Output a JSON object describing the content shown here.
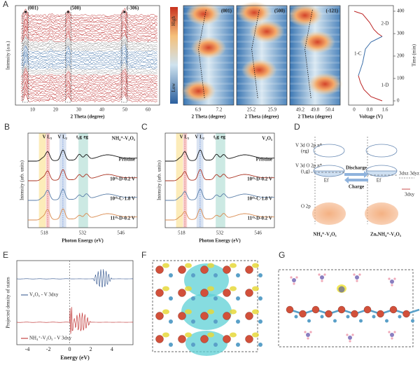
{
  "panel_a": {
    "label": "A",
    "peaks": [
      "(001)",
      "(500)",
      "(-306)"
    ],
    "y_label": "Intensity (a.u.)",
    "x_label": "2 Theta (degree)",
    "x_ticks": [
      "10",
      "20",
      "30",
      "40",
      "50",
      "60"
    ]
  },
  "heatmaps": {
    "colorbar": [
      "High",
      "Low"
    ],
    "panels": [
      {
        "title": "(001)",
        "ticks": [
          "6.9",
          "7.2"
        ],
        "x_label": "2 Theta (degree)"
      },
      {
        "title": "(500)",
        "ticks": [
          "25.2",
          "25.9"
        ],
        "x_label": "2 Theta (degree)"
      },
      {
        "title": "(-121)",
        "ticks": [
          "49.2",
          "49.8",
          "50.4"
        ],
        "x_label": "2 Theta (degree)"
      }
    ]
  },
  "voltage": {
    "stages": [
      "2-D",
      "1-C",
      "1-D"
    ],
    "x_ticks": [
      "0",
      "0.8",
      "1.6"
    ],
    "x_label": "Voltage (V)",
    "y_ticks": [
      "0",
      "100",
      "200",
      "300",
      "400"
    ],
    "y_label": "Time (min)"
  },
  "panel_b": {
    "label": "B",
    "edges": [
      "V L₃",
      "V L₂",
      "t₂g",
      "eg"
    ],
    "material": "NH₄⁺-V₂O₅",
    "curves": [
      "Pristine",
      "10ᵗʰ-D-0.2 V",
      "10ᵗʰ-C-1.8 V",
      "11ᵗʰ-D-0.2 V"
    ],
    "y_label": "Intensity (arb. units)",
    "x_label": "Photon Energy (eV)",
    "x_ticks": [
      "518",
      "532",
      "546"
    ]
  },
  "panel_c": {
    "label": "C",
    "edges": [
      "V L₃",
      "V L₂",
      "t₂g",
      "eg"
    ],
    "material": "V₂O₅",
    "curves": [
      "Pristine",
      "10ᵗʰ-D-0.2 V",
      "10ᵗʰ-C-1.8 V",
      "11ᵗʰ-D-0.2 V"
    ],
    "y_label": "Intensity (arb. units)",
    "x_label": "Photon Energy (eV)",
    "x_ticks": [
      "518",
      "532",
      "546"
    ]
  },
  "panel_d": {
    "label": "D",
    "upper_band": "V 3d O 2p π*",
    "upper_sym": "(eg)",
    "lower_band": "V 3d O 2p π*",
    "lower_sym": "(t₂g)",
    "fermi": [
      "Ef",
      "Ef"
    ],
    "arrows": [
      "Discharge",
      "Charge"
    ],
    "o_band": "O 2p",
    "split_upper": "3dxz  3dyz",
    "split_lower": "3dxy",
    "materials": [
      "NH₄⁺-V₂O₅",
      "ZnₓNH₄⁺-V₂O₅"
    ]
  },
  "panel_e": {
    "label": "E",
    "legend": [
      "V₂O₅ - V 3dxy",
      "NH₄⁺-V₂O₅ - V 3dxy"
    ],
    "y_label": "Projected density of states",
    "x_label": "Energy (eV)",
    "x_ticks": [
      "-4",
      "-2",
      "0",
      "2",
      "4"
    ]
  },
  "panel_f": {
    "label": "F"
  },
  "panel_g": {
    "label": "G"
  }
}
